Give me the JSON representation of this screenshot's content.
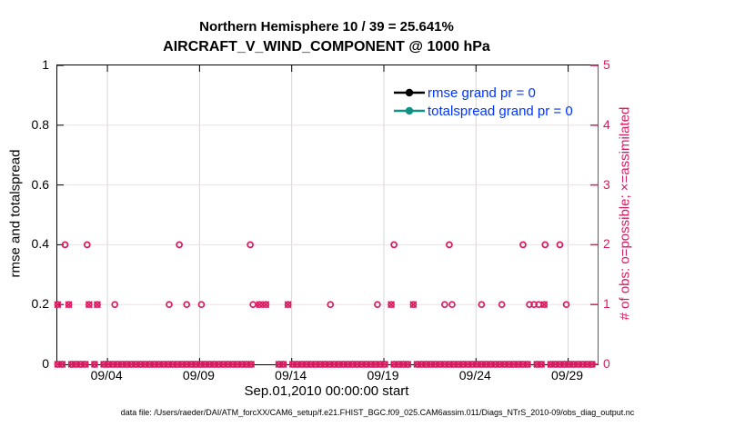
{
  "figure": {
    "background": "#ffffff"
  },
  "footer": {
    "text": "data file: /Users/raeder/DAI/ATM_forcXX/CAM6_setup/f.e21.FHIST_BGC.f09_025.CAM6assim.011/Diags_NTrS_2010-09/obs_diag_output.nc"
  },
  "chart_data": {
    "type": "scatter",
    "title": "Northern Hemisphere 10 / 39 = 25.641%",
    "subtitle": "AIRCRAFT_V_WIND_COMPONENT @ 1000 hPa",
    "xlabel": "Sep.01,2010 00:00:00 start",
    "ylabel_left": "rmse and totalspread",
    "ylabel_right": "# of obs: o=possible; ×=assimilated",
    "ylim_left": [
      0,
      1
    ],
    "ylim_right": [
      0,
      5
    ],
    "x_range_days": [
      0.28,
      29.6
    ],
    "x_ticks": [
      {
        "label": "09/04",
        "day": 3
      },
      {
        "label": "09/09",
        "day": 8
      },
      {
        "label": "09/14",
        "day": 13
      },
      {
        "label": "09/19",
        "day": 18
      },
      {
        "label": "09/24",
        "day": 23
      },
      {
        "label": "09/29",
        "day": 28
      }
    ],
    "y_ticks_left": [
      0,
      0.2,
      0.4,
      0.6,
      0.8,
      1
    ],
    "y_ticks_right": [
      0,
      1,
      2,
      3,
      4,
      5
    ],
    "grid": true,
    "grid_y_left": [
      0.2,
      0.4,
      0.6,
      0.8
    ],
    "legend_position": "upper-right-inside, no box",
    "colors": {
      "obs": "#d81b60",
      "grid_h": "#f8dbe4",
      "grid_v": "#d6d6d6",
      "axis": "#000000",
      "right_axis": "#d81b60",
      "legend_text": "#0033ff"
    },
    "series": [
      {
        "name": "rmse grand pr = 0",
        "color": "#000000",
        "axis": "left",
        "constant_value": 0
      },
      {
        "name": "totalspread grand pr = 0",
        "color": "#0f9185",
        "axis": "left",
        "constant_value": 0
      }
    ],
    "obs_counts": {
      "axis": "right",
      "possible_marker": "o",
      "assimilated_marker": "×",
      "possible_1_days": [
        3.4,
        6.35,
        7.3,
        8.1,
        10.9,
        15.1,
        17.65,
        21.3,
        21.7,
        23.3,
        24.4,
        25.9,
        26.15,
        26.4,
        27.9
      ],
      "possible_2_days": [
        0.7,
        1.9,
        6.9,
        10.75,
        18.55,
        21.55,
        25.55,
        26.75,
        27.55
      ],
      "assimilated_1_days": [
        0.3,
        0.9,
        2.0,
        2.45,
        11.25,
        11.6,
        12.8,
        18.4,
        19.6,
        26.7
      ],
      "zero_band": {
        "start_day": 0.3,
        "end_day": 29.5,
        "step_day": 0.25,
        "gap_days": [
          0.9,
          2.0,
          2.45,
          11.0,
          11.25,
          11.5,
          11.75,
          12.0,
          12.8,
          18.4,
          19.6,
          26.15,
          26.7
        ]
      }
    }
  }
}
